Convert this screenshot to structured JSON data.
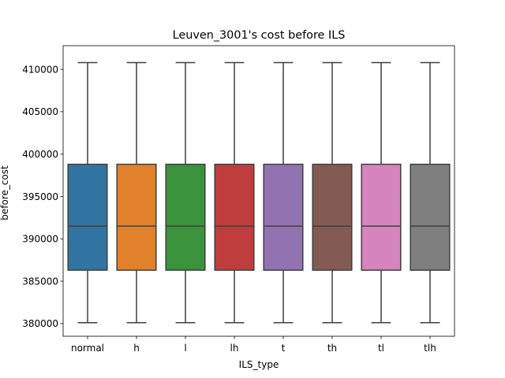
{
  "chart_data": {
    "type": "box",
    "title": "Leuven_3001's cost before ILS",
    "xlabel": "ILS_type",
    "ylabel": "before_cost",
    "ylim": [
      378500,
      412800
    ],
    "yticks": [
      380000,
      385000,
      390000,
      395000,
      400000,
      405000,
      410000
    ],
    "ytick_labels": [
      "380000",
      "385000",
      "390000",
      "395000",
      "400000",
      "405000",
      "410000"
    ],
    "categories": [
      "normal",
      "h",
      "l",
      "lh",
      "t",
      "th",
      "tl",
      "tlh"
    ],
    "colors": [
      "#3274a1",
      "#e1812c",
      "#3a923a",
      "#c03d3e",
      "#9372b2",
      "#845b53",
      "#d684bd",
      "#7f7f7f"
    ],
    "edge_color": "#3f3f3f",
    "boxes": [
      {
        "category": "normal",
        "whisker_low": 380100,
        "q1": 386300,
        "median": 391500,
        "q3": 398800,
        "whisker_high": 410800
      },
      {
        "category": "h",
        "whisker_low": 380100,
        "q1": 386300,
        "median": 391500,
        "q3": 398800,
        "whisker_high": 410800
      },
      {
        "category": "l",
        "whisker_low": 380100,
        "q1": 386300,
        "median": 391500,
        "q3": 398800,
        "whisker_high": 410800
      },
      {
        "category": "lh",
        "whisker_low": 380100,
        "q1": 386300,
        "median": 391500,
        "q3": 398800,
        "whisker_high": 410800
      },
      {
        "category": "t",
        "whisker_low": 380100,
        "q1": 386300,
        "median": 391500,
        "q3": 398800,
        "whisker_high": 410800
      },
      {
        "category": "th",
        "whisker_low": 380100,
        "q1": 386300,
        "median": 391500,
        "q3": 398800,
        "whisker_high": 410800
      },
      {
        "category": "tl",
        "whisker_low": 380100,
        "q1": 386300,
        "median": 391500,
        "q3": 398800,
        "whisker_high": 410800
      },
      {
        "category": "tlh",
        "whisker_low": 380100,
        "q1": 386300,
        "median": 391500,
        "q3": 398800,
        "whisker_high": 410800
      }
    ],
    "grid": false,
    "legend": "none"
  }
}
